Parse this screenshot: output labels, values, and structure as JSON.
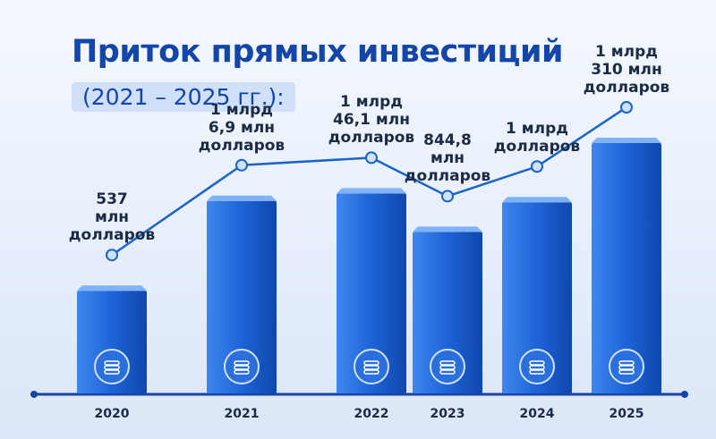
{
  "chart_data": {
    "type": "bar",
    "title": "Приток прямых инвестиций",
    "subtitle": "(2021 – 2025 гг.):",
    "categories": [
      "2020",
      "2021",
      "2022",
      "2023",
      "2024",
      "2025"
    ],
    "values": [
      537,
      1006.9,
      1046.1,
      844.8,
      1000,
      1310
    ],
    "value_labels": [
      "537\nмлн\nдолларов",
      "1 млрд\n6,9 млн\nдолларов",
      "1 млрд\n46,1 млн\nдолларов",
      "844,8\nмлн\nдолларов",
      "1 млрд\nдолларов",
      "1 млрд\n310 млн\nдолларов"
    ],
    "color": "#1e63d6"
  }
}
